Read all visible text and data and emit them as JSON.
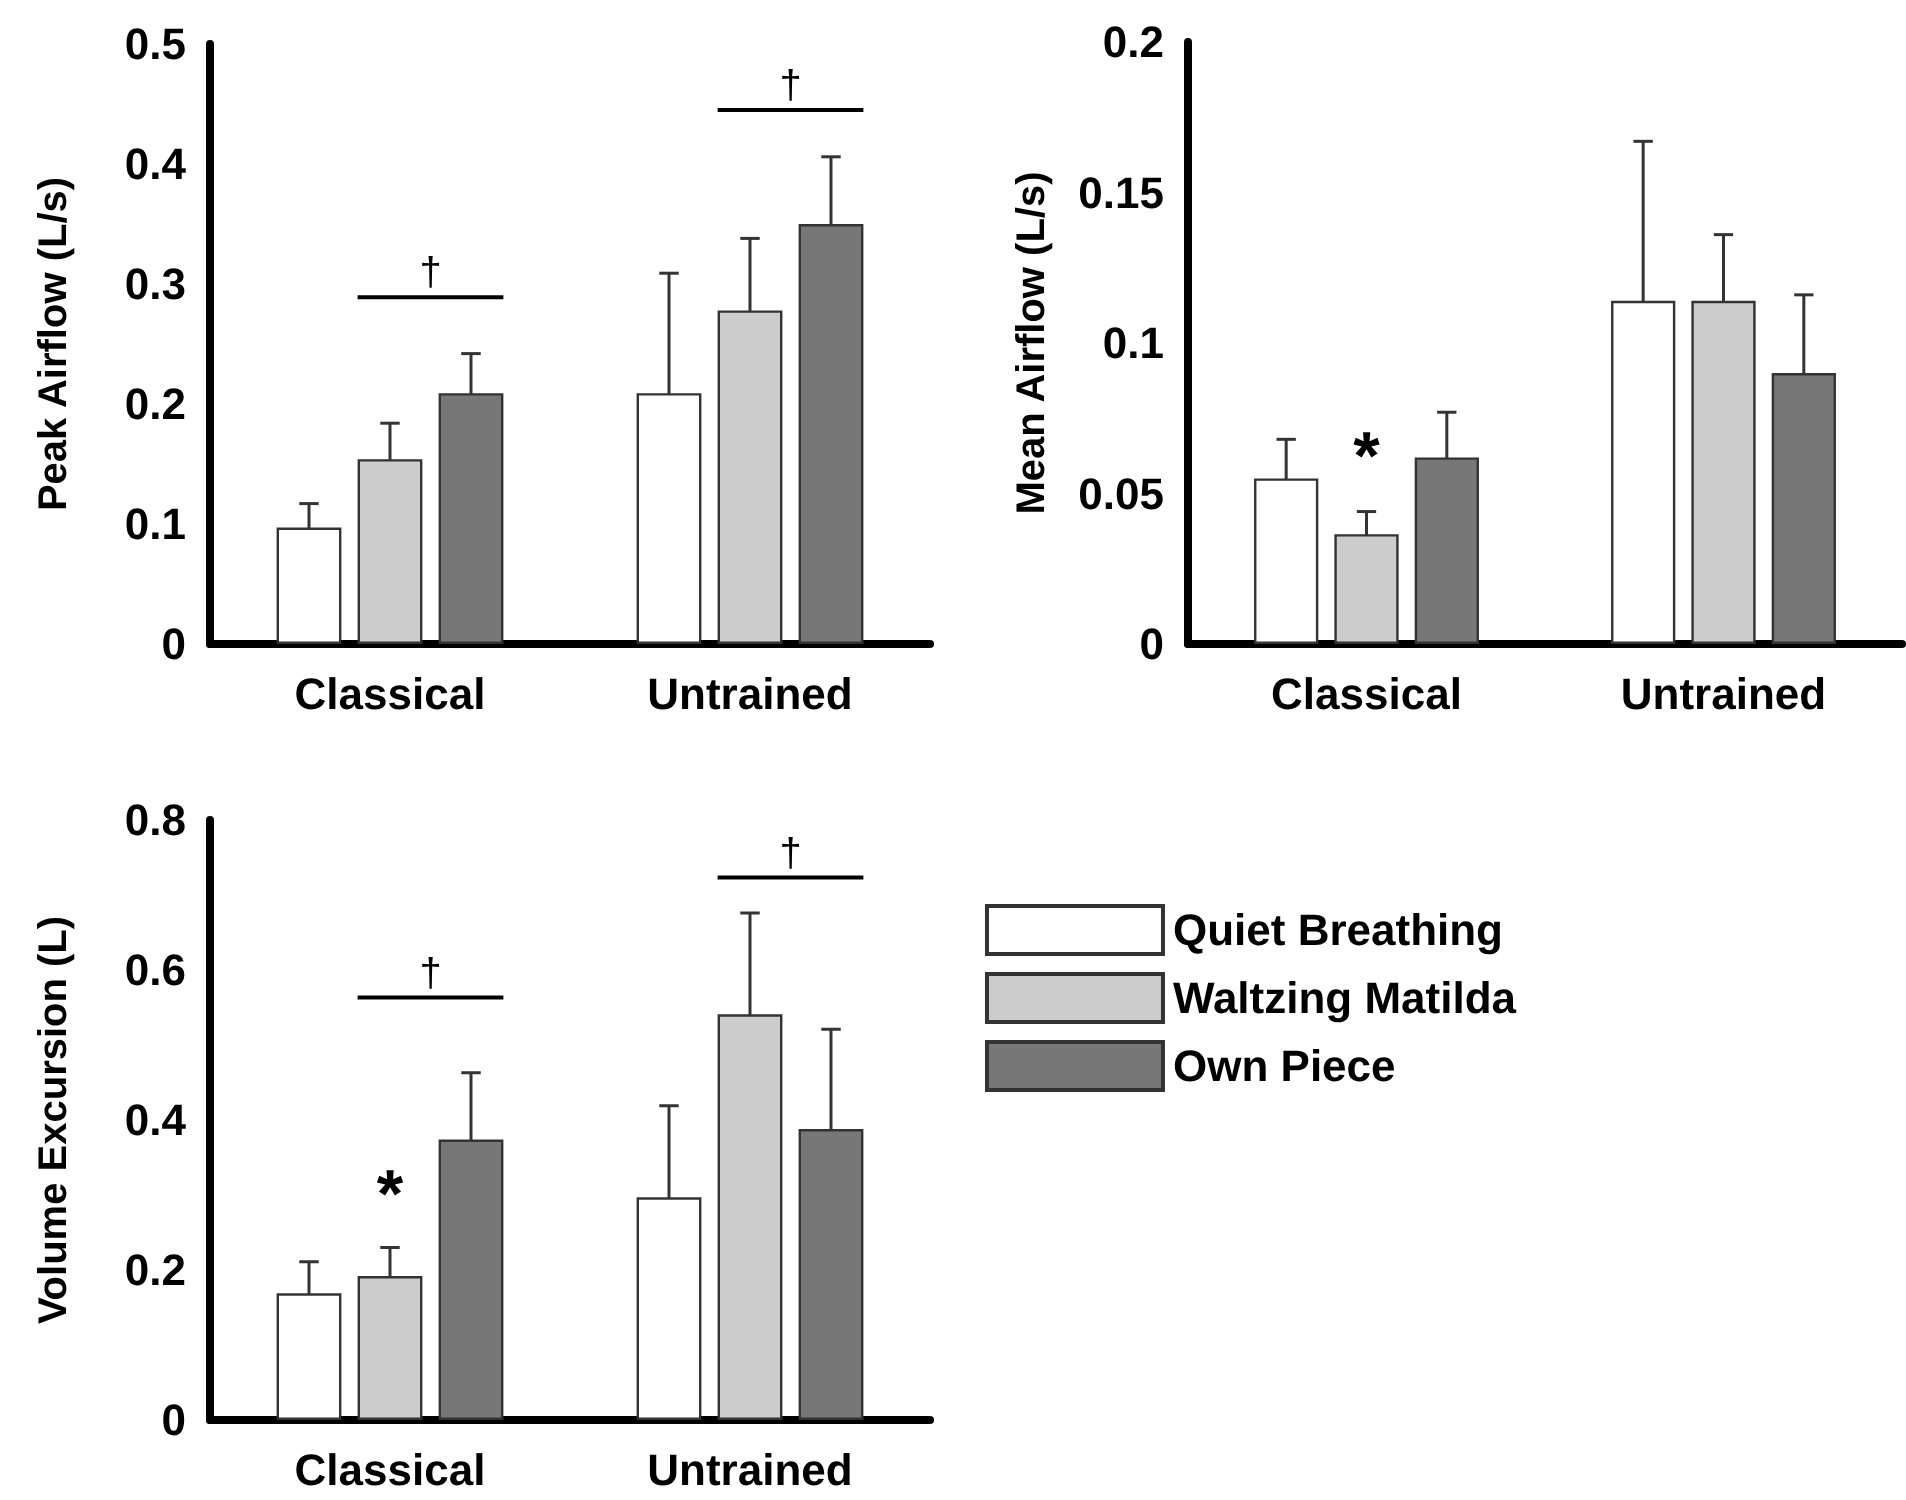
{
  "chart_data": [
    {
      "type": "bar",
      "ylabel": "Peak Airflow (L/s)",
      "categories": [
        "Classical",
        "Untrained"
      ],
      "series": [
        {
          "color": "#ffffff",
          "values": [
            0.097,
            0.209
          ],
          "errors": [
            0.02,
            0.1
          ]
        },
        {
          "color": "#cccccc",
          "values": [
            0.154,
            0.278
          ],
          "errors": [
            0.03,
            0.06
          ]
        },
        {
          "color": "#777777",
          "values": [
            0.209,
            0.35
          ],
          "errors": [
            0.033,
            0.056
          ]
        }
      ],
      "ylim": [
        0,
        0.5
      ],
      "yticks": [
        0,
        0.1,
        0.2,
        0.3,
        0.4,
        0.5
      ],
      "annotations": [
        "†",
        "†"
      ]
    },
    {
      "type": "bar",
      "ylabel": "Mean Airflow (L/s)",
      "categories": [
        "Classical",
        "Untrained"
      ],
      "series": [
        {
          "color": "#ffffff",
          "values": [
            0.055,
            0.114
          ],
          "errors": [
            0.013,
            0.053
          ]
        },
        {
          "color": "#cccccc",
          "values": [
            0.0365,
            0.114
          ],
          "errors": [
            0.0075,
            0.022
          ]
        },
        {
          "color": "#777777",
          "values": [
            0.062,
            0.09
          ],
          "errors": [
            0.015,
            0.026
          ]
        }
      ],
      "ylim": [
        0,
        0.2
      ],
      "yticks": [
        0,
        0.05,
        0.1,
        0.15,
        0.2
      ],
      "annotations": [
        "*"
      ]
    },
    {
      "type": "bar",
      "ylabel": "Volume Excursion (L)",
      "categories": [
        "Classical",
        "Untrained"
      ],
      "series": [
        {
          "name": "Quiet Breathing",
          "color": "#ffffff",
          "values": [
            0.169,
            0.297
          ],
          "errors": [
            0.042,
            0.122
          ]
        },
        {
          "name": "Waltzing Matilda",
          "color": "#cccccc",
          "values": [
            0.192,
            0.541
          ],
          "errors": [
            0.038,
            0.135
          ]
        },
        {
          "name": "Own Piece",
          "color": "#777777",
          "values": [
            0.374,
            0.388
          ],
          "errors": [
            0.089,
            0.133
          ]
        }
      ],
      "ylim": [
        0,
        0.8
      ],
      "yticks": [
        0,
        0.2,
        0.4,
        0.6,
        0.8
      ],
      "annotations": [
        "*",
        "†",
        "†"
      ],
      "legend": "right"
    }
  ]
}
